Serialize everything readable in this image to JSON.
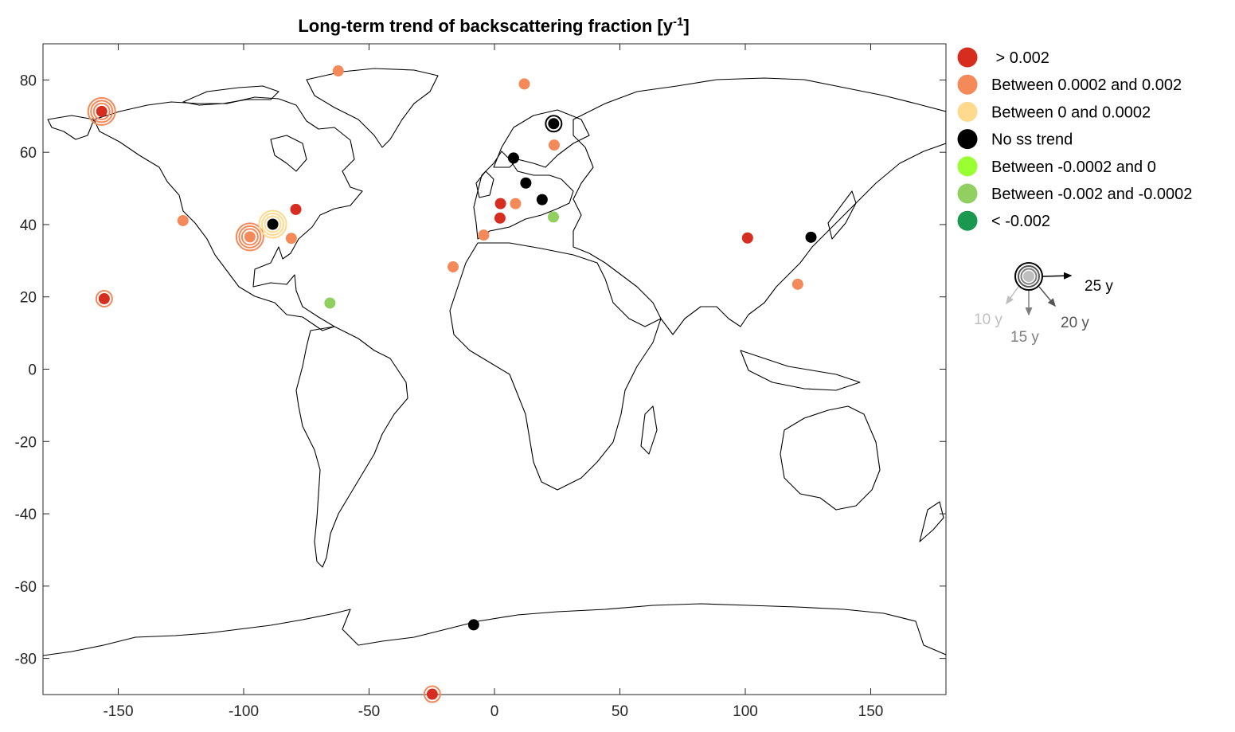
{
  "chart_data": {
    "type": "scatter",
    "title": "Long-term trend of backscattering fraction [y",
    "title_superscript": "-1",
    "title_suffix": "]",
    "xlabel": "",
    "ylabel": "",
    "xlim": [
      -180,
      180
    ],
    "ylim": [
      -90,
      90
    ],
    "xticks": [
      -150,
      -100,
      -50,
      0,
      50,
      100,
      150
    ],
    "yticks": [
      80,
      60,
      40,
      20,
      0,
      -20,
      -40,
      -60,
      -80
    ],
    "grid": false,
    "legend_position": "outside-right",
    "categories": [
      {
        "key": "gt_0.002",
        "label": " > 0.002",
        "color": "#d62d20"
      },
      {
        "key": "0.0002_0.002",
        "label": "Between 0.0002 and 0.002",
        "color": "#f4895a"
      },
      {
        "key": "0_0.0002",
        "label": "Between 0 and 0.0002",
        "color": "#fed98e"
      },
      {
        "key": "no_trend",
        "label": "No ss trend",
        "color": "#000000"
      },
      {
        "key": "-0.0002_0",
        "label": "Between -0.0002 and 0",
        "color": "#99ff33"
      },
      {
        "key": "-0.002_-0.0002",
        "label": "Between -0.002 and -0.0002",
        "color": "#91cf60"
      },
      {
        "key": "lt_-0.002",
        "label": "< -0.002",
        "color": "#1a9850"
      }
    ],
    "duration_legend": [
      {
        "label": "25 y",
        "color": "#000000"
      },
      {
        "label": "20 y",
        "color": "#555555"
      },
      {
        "label": "15 y",
        "color": "#7f7f7f"
      },
      {
        "label": "10 y",
        "color": "#bfbfbf"
      }
    ],
    "points": [
      {
        "lon": -156.6,
        "lat": 71.3,
        "cat": "gt_0.002",
        "ring": "0.0002_0.002",
        "rings": 3
      },
      {
        "lon": -155.6,
        "lat": 19.5,
        "cat": "gt_0.002",
        "ring": "0.0002_0.002",
        "rings": 1
      },
      {
        "lon": -124.2,
        "lat": 41.1,
        "cat": "0.0002_0.002",
        "rings": 0
      },
      {
        "lon": -97.5,
        "lat": 36.6,
        "cat": "0.0002_0.002",
        "ring": "0.0002_0.002",
        "rings": 3
      },
      {
        "lon": -88.4,
        "lat": 40.1,
        "cat": "no_trend",
        "ring": "0_0.0002",
        "rings": 3
      },
      {
        "lon": -79.2,
        "lat": 44.2,
        "cat": "gt_0.002",
        "rings": 0
      },
      {
        "lon": -81.0,
        "lat": 36.2,
        "cat": "0.0002_0.002",
        "rings": 0
      },
      {
        "lon": -62.3,
        "lat": 82.5,
        "cat": "0.0002_0.002",
        "rings": 0
      },
      {
        "lon": -65.6,
        "lat": 18.3,
        "cat": "-0.002_-0.0002",
        "rings": 0
      },
      {
        "lon": -16.5,
        "lat": 28.3,
        "cat": "0.0002_0.002",
        "rings": 0
      },
      {
        "lon": -4.3,
        "lat": 37.1,
        "cat": "0.0002_0.002",
        "rings": 0
      },
      {
        "lon": 2.2,
        "lat": 41.8,
        "cat": "gt_0.002",
        "rings": 0
      },
      {
        "lon": 2.4,
        "lat": 45.8,
        "cat": "gt_0.002",
        "rings": 0
      },
      {
        "lon": 8.4,
        "lat": 45.8,
        "cat": "0.0002_0.002",
        "rings": 0
      },
      {
        "lon": 11.9,
        "lat": 78.9,
        "cat": "0.0002_0.002",
        "rings": 0
      },
      {
        "lon": 7.6,
        "lat": 58.4,
        "cat": "no_trend",
        "rings": 0
      },
      {
        "lon": 12.5,
        "lat": 51.5,
        "cat": "no_trend",
        "rings": 0
      },
      {
        "lon": 19.0,
        "lat": 46.9,
        "cat": "no_trend",
        "rings": 0
      },
      {
        "lon": 23.5,
        "lat": 42.1,
        "cat": "-0.002_-0.0002",
        "rings": 0
      },
      {
        "lon": 23.8,
        "lat": 62.0,
        "cat": "0.0002_0.002",
        "rings": 0
      },
      {
        "lon": 23.6,
        "lat": 67.9,
        "cat": "no_trend",
        "ring": "no_trend",
        "rings": 1
      },
      {
        "lon": 100.9,
        "lat": 36.3,
        "cat": "gt_0.002",
        "rings": 0
      },
      {
        "lon": 120.9,
        "lat": 23.5,
        "cat": "0.0002_0.002",
        "rings": 0
      },
      {
        "lon": 126.2,
        "lat": 36.5,
        "cat": "no_trend",
        "rings": 0
      },
      {
        "lon": -8.3,
        "lat": -70.7,
        "cat": "no_trend",
        "rings": 0
      },
      {
        "lon": -24.8,
        "lat": -89.9,
        "cat": "gt_0.002",
        "ring": "0.0002_0.002",
        "rings": 1
      }
    ]
  },
  "colors": {
    "axis": "#262626",
    "coast": "#000000",
    "background": "#ffffff"
  }
}
